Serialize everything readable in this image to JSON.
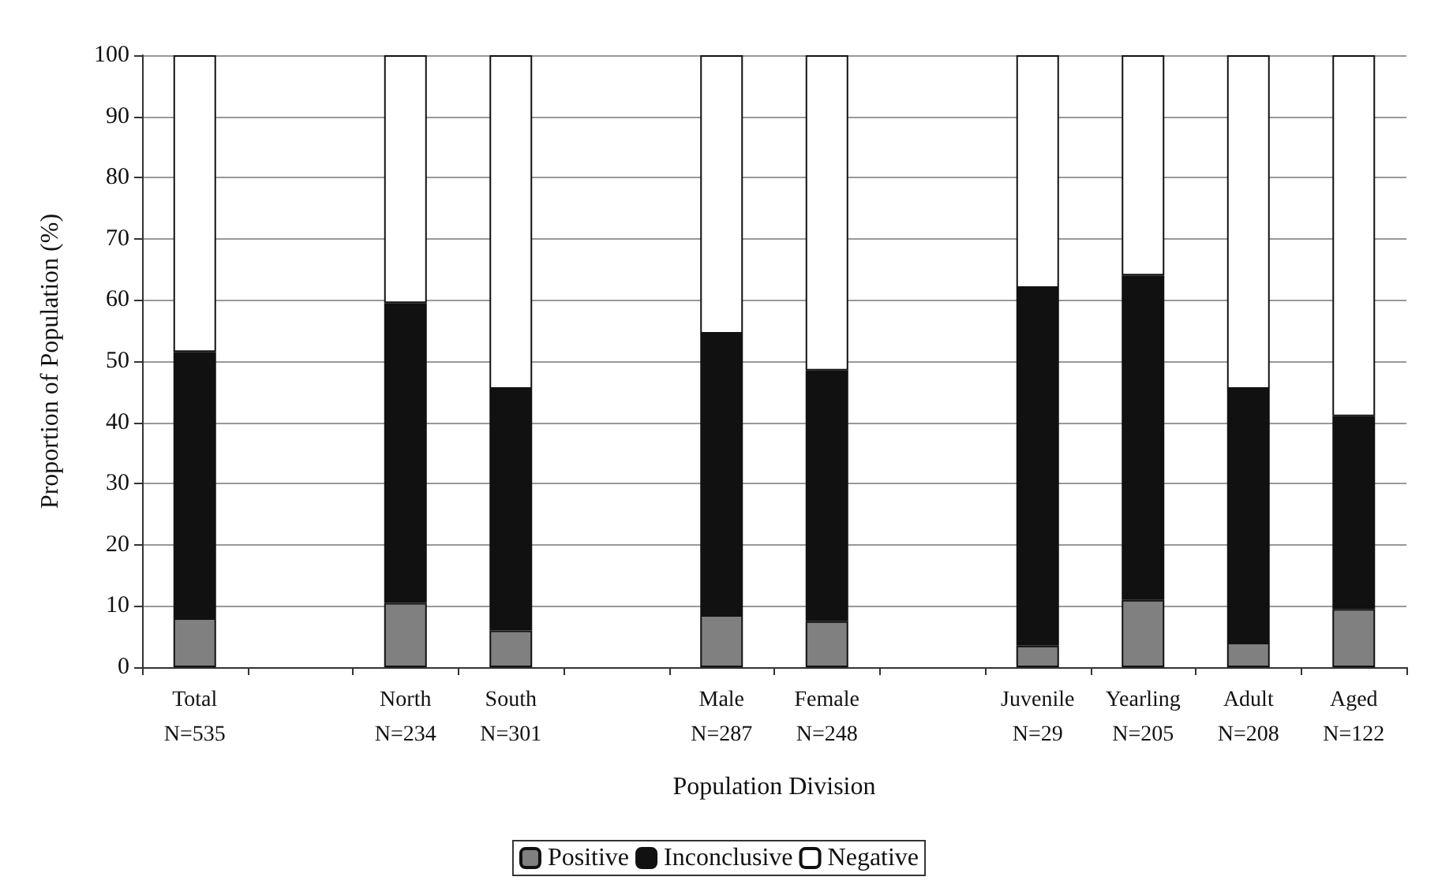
{
  "chart_data": {
    "type": "bar",
    "stacked": true,
    "xlabel": "Population Division",
    "ylabel": "Proportion of Population (%)",
    "categories": [
      "Total\nN=535",
      null,
      "North\nN=234",
      "South\nN=301",
      null,
      "Male\nN=287",
      "Female\nN=248",
      null,
      "Juvenile\nN=29",
      "Yearling\nN=205",
      "Adult\nN=208",
      "Aged\nN=122"
    ],
    "series": [
      {
        "name": "Positive",
        "color": "#808080",
        "values": [
          8,
          null,
          10.5,
          6,
          null,
          8.5,
          7.5,
          null,
          3.5,
          11,
          4,
          9.5
        ]
      },
      {
        "name": "Inconclusive",
        "color": "#111111",
        "values": [
          43.5,
          null,
          49,
          39.5,
          null,
          46,
          41,
          null,
          58.5,
          53,
          41.5,
          31.5
        ]
      },
      {
        "name": "Negative",
        "color": "#ffffff",
        "values": [
          48.5,
          null,
          40.5,
          54.5,
          null,
          45.5,
          51.5,
          null,
          38,
          36,
          54.5,
          59
        ]
      }
    ],
    "ylim": [
      0,
      100
    ],
    "yticks": [
      0,
      10,
      20,
      30,
      40,
      50,
      60,
      70,
      80,
      90,
      100
    ],
    "grid": "y",
    "legend": "bottom"
  }
}
